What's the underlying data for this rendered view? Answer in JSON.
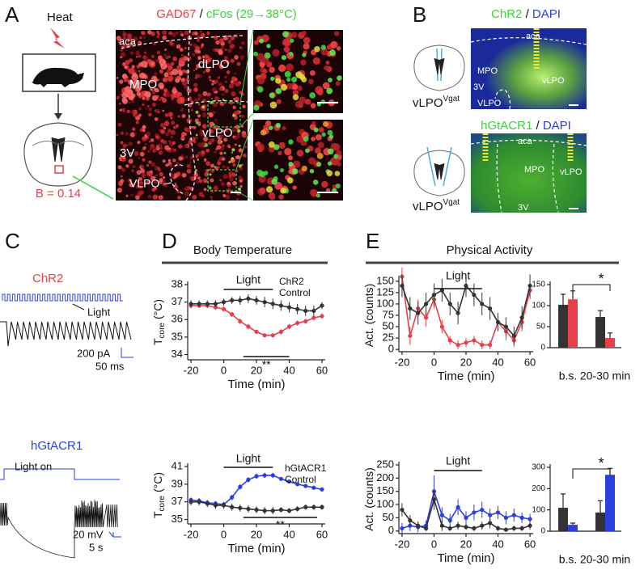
{
  "panels": {
    "A": {
      "letter": "A",
      "heat": "Heat",
      "b_value": "B = 0.14",
      "title": [
        "GAD67",
        "/",
        "cFos (29→38°C)"
      ],
      "image_labels": [
        "aca",
        "dLPO",
        "MPO",
        "vLPO",
        "3V",
        "VLPO"
      ]
    },
    "B": {
      "letter": "B",
      "title_top": [
        "ChR2",
        "/",
        "DAPI"
      ],
      "title_bottom": [
        "hGtACR1",
        "/",
        "DAPI"
      ],
      "target": "vLPO",
      "target_sup": "Vgat",
      "labels_top": [
        "aca",
        "MPO",
        "3V",
        "vLPO",
        "VLPO"
      ],
      "labels_bottom": [
        "aca",
        "MPO",
        "vLPO",
        "3V"
      ]
    },
    "C": {
      "letter": "C",
      "top": {
        "name": "ChR2",
        "light": "Light",
        "scale_y": "200 pA",
        "scale_x": "50 ms"
      },
      "bottom": {
        "name": "hGtACR1",
        "light": "Light on",
        "scale_y": "20 mV",
        "scale_x": "5 s"
      }
    },
    "D": {
      "letter": "D",
      "heading": "Body Temperature"
    },
    "E": {
      "letter": "E",
      "heading": "Physical Activity"
    }
  },
  "chart_data": [
    {
      "type": "line",
      "x": [
        -20,
        -15,
        -10,
        -5,
        0,
        5,
        10,
        15,
        20,
        25,
        30,
        35,
        40,
        45,
        50,
        55,
        60
      ],
      "xlim": [
        -22,
        62
      ],
      "xticks": [
        -20,
        0,
        20,
        40,
        60
      ],
      "ylim": [
        33.7,
        38
      ],
      "yticks": [
        34,
        35,
        36,
        37,
        38
      ],
      "xlabel": "Time (min)",
      "ylabel": "T",
      "ylabel_sub": "core",
      "ylabel_unit": "(°C)",
      "legend": "upper right",
      "series": [
        {
          "name": "ChR2",
          "color": "#e8404a",
          "values": [
            36.8,
            36.8,
            36.8,
            36.7,
            36.6,
            36.3,
            35.9,
            35.6,
            35.3,
            35.1,
            35.1,
            35.3,
            35.6,
            35.8,
            35.9,
            36.1,
            36.2
          ],
          "errors": [
            0.15,
            0.15,
            0.15,
            0.15,
            0.15,
            0.15,
            0.15,
            0.15,
            0.1,
            0.1,
            0.1,
            0.15,
            0.15,
            0.15,
            0.15,
            0.15,
            0.15
          ]
        },
        {
          "name": "Control",
          "color": "#333333",
          "values": [
            36.9,
            36.9,
            36.9,
            36.9,
            37.0,
            37.1,
            37.1,
            37.2,
            37.1,
            37.0,
            36.9,
            36.8,
            36.7,
            36.6,
            36.5,
            36.5,
            36.8
          ],
          "errors": [
            0.2,
            0.2,
            0.2,
            0.2,
            0.2,
            0.2,
            0.25,
            0.25,
            0.25,
            0.3,
            0.3,
            0.3,
            0.3,
            0.3,
            0.3,
            0.3,
            0.2
          ]
        }
      ],
      "annotations": [
        {
          "text": "Light",
          "x": [
            0,
            30
          ]
        },
        {
          "text": "**",
          "x": [
            12,
            40
          ]
        }
      ]
    },
    {
      "type": "line",
      "x": [
        -20,
        -15,
        -10,
        -5,
        0,
        5,
        10,
        15,
        20,
        25,
        30,
        35,
        40,
        45,
        50,
        55,
        60
      ],
      "xlim": [
        -22,
        62
      ],
      "xticks": [
        -20,
        0,
        20,
        40,
        60
      ],
      "ylim": [
        34.5,
        41
      ],
      "yticks": [
        35,
        37,
        39,
        41
      ],
      "xlabel": "Time (min)",
      "ylabel": "T",
      "ylabel_sub": "core",
      "ylabel_unit": "(°C)",
      "legend": "upper right",
      "series": [
        {
          "name": "hGtACR1",
          "color": "#2a3fe0",
          "values": [
            37.2,
            37.1,
            36.9,
            36.8,
            36.7,
            37.5,
            38.7,
            39.5,
            39.9,
            40.0,
            40.0,
            39.6,
            39.3,
            39.0,
            38.8,
            38.6,
            38.4
          ],
          "errors": [
            0.3,
            0.3,
            0.3,
            0.3,
            0.3,
            0.3,
            0.3,
            0.3,
            0.3,
            0.3,
            0.3,
            0.2,
            0.2,
            0.2,
            0.2,
            0.2,
            0.2
          ]
        },
        {
          "name": "Control",
          "color": "#333333",
          "values": [
            37.0,
            37.0,
            36.8,
            36.6,
            36.6,
            36.4,
            36.3,
            36.2,
            36.1,
            36.0,
            36.0,
            36.1,
            36.0,
            36.2,
            36.4,
            36.4,
            36.4
          ],
          "errors": [
            0.4,
            0.4,
            0.4,
            0.4,
            0.4,
            0.4,
            0.4,
            0.4,
            0.4,
            0.4,
            0.4,
            0.3,
            0.3,
            0.3,
            0.3,
            0.3,
            0.3
          ]
        }
      ],
      "annotations": [
        {
          "text": "Light",
          "x": [
            0,
            30
          ]
        },
        {
          "text": "**",
          "x": [
            12,
            57
          ]
        }
      ]
    },
    {
      "type": "line",
      "x": [
        -20,
        -15,
        -10,
        -5,
        0,
        5,
        10,
        15,
        20,
        25,
        30,
        35,
        40,
        45,
        50,
        55,
        60
      ],
      "xlim": [
        -22,
        62
      ],
      "xticks": [
        -20,
        0,
        20,
        40,
        60
      ],
      "ylim": [
        -5,
        155
      ],
      "yticks": [
        0,
        25,
        50,
        75,
        100,
        125,
        150
      ],
      "xlabel": "Time (min)",
      "ylabel": "Act. (counts)",
      "series": [
        {
          "color": "#e8404a",
          "values": [
            160,
            30,
            90,
            70,
            110,
            50,
            20,
            10,
            15,
            20,
            10,
            10,
            60,
            40,
            20,
            60,
            130
          ],
          "errors": [
            20,
            20,
            20,
            20,
            20,
            15,
            10,
            10,
            10,
            10,
            10,
            10,
            20,
            20,
            15,
            20,
            20
          ]
        },
        {
          "color": "#333333",
          "values": [
            140,
            90,
            80,
            100,
            120,
            130,
            100,
            80,
            140,
            120,
            100,
            90,
            60,
            50,
            30,
            70,
            140
          ],
          "errors": [
            25,
            25,
            25,
            25,
            25,
            25,
            25,
            25,
            25,
            25,
            25,
            25,
            20,
            20,
            20,
            25,
            25
          ]
        }
      ],
      "annotations": [
        {
          "text": "Light",
          "x": [
            0,
            30
          ]
        }
      ]
    },
    {
      "type": "bar",
      "categories": [
        "b.s.",
        "20-30 min"
      ],
      "ylim": [
        0,
        150
      ],
      "yticks": [
        0,
        50,
        100,
        150
      ],
      "series": [
        {
          "color": "#333333",
          "values": [
            102,
            73
          ],
          "errors": [
            25,
            15
          ]
        },
        {
          "color": "#e8404a",
          "values": [
            115,
            23
          ],
          "errors": [
            20,
            12
          ]
        }
      ],
      "annotations": [
        {
          "text": "*"
        }
      ]
    },
    {
      "type": "line",
      "x": [
        -20,
        -15,
        -10,
        -5,
        0,
        5,
        10,
        15,
        20,
        25,
        30,
        35,
        40,
        45,
        50,
        55,
        60
      ],
      "xlim": [
        -22,
        62
      ],
      "xticks": [
        -20,
        0,
        20,
        40,
        60
      ],
      "ylim": [
        -10,
        250
      ],
      "yticks": [
        0,
        50,
        100,
        150,
        200,
        250
      ],
      "xlabel": "Time (min)",
      "ylabel": "Act. (counts)",
      "series": [
        {
          "color": "#2a3fe0",
          "values": [
            10,
            20,
            15,
            20,
            150,
            60,
            40,
            90,
            50,
            70,
            80,
            60,
            70,
            50,
            60,
            50,
            45
          ],
          "errors": [
            20,
            20,
            20,
            20,
            60,
            30,
            25,
            30,
            25,
            30,
            30,
            25,
            25,
            25,
            25,
            20,
            20
          ]
        },
        {
          "color": "#333333",
          "values": [
            80,
            40,
            20,
            10,
            120,
            20,
            10,
            20,
            15,
            10,
            20,
            30,
            10,
            5,
            10,
            10,
            20
          ],
          "errors": [
            25,
            20,
            15,
            10,
            40,
            20,
            10,
            15,
            10,
            10,
            15,
            20,
            10,
            5,
            10,
            10,
            15
          ]
        }
      ],
      "annotations": [
        {
          "text": "Light",
          "x": [
            0,
            30
          ]
        }
      ]
    },
    {
      "type": "bar",
      "categories": [
        "b.s.",
        "20-30 min"
      ],
      "ylim": [
        0,
        300
      ],
      "yticks": [
        0,
        100,
        200,
        300
      ],
      "series": [
        {
          "color": "#333333",
          "values": [
            110,
            88
          ],
          "errors": [
            65,
            55
          ]
        },
        {
          "color": "#2a3fe0",
          "values": [
            30,
            265
          ],
          "errors": [
            8,
            30
          ]
        }
      ],
      "annotations": [
        {
          "text": "*"
        }
      ]
    }
  ]
}
